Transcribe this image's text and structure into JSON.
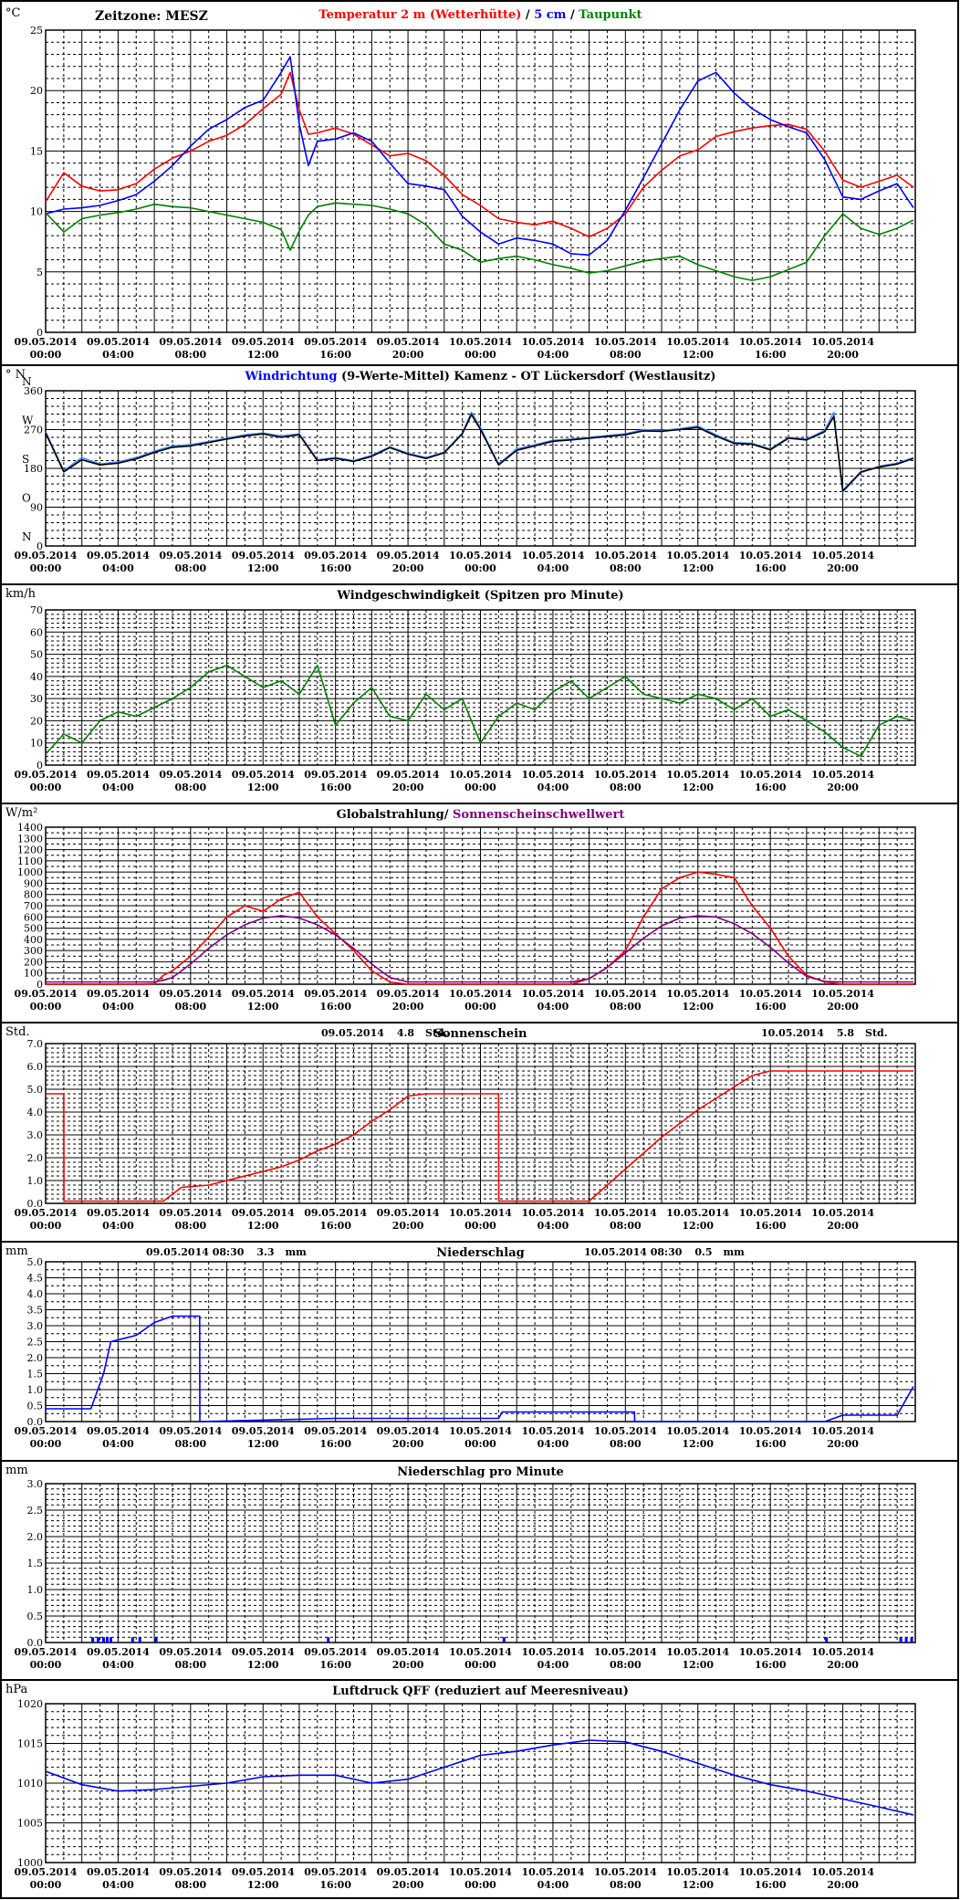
{
  "page": {
    "timezone_label": "Zeitzone: MESZ",
    "x_tick_dates": [
      "09.05.2014",
      "09.05.2014",
      "09.05.2014",
      "09.05.2014",
      "09.05.2014",
      "09.05.2014",
      "10.05.2014",
      "10.05.2014",
      "10.05.2014",
      "10.05.2014",
      "10.05.2014",
      "10.05.2014"
    ],
    "x_tick_times": [
      "00:00",
      "04:00",
      "08:00",
      "12:00",
      "16:00",
      "20:00",
      "00:00",
      "04:00",
      "08:00",
      "12:00",
      "16:00",
      "20:00"
    ]
  },
  "chart_data": [
    {
      "id": "temperature",
      "type": "line",
      "unit": "°C",
      "title_parts": [
        {
          "text": "Temperatur 2 m (Wetterhütte)",
          "color": "#ff0000"
        },
        {
          "text": "  /  ",
          "color": "#000000"
        },
        {
          "text": "5 cm",
          "color": "#0000ff"
        },
        {
          "text": " / ",
          "color": "#000000"
        },
        {
          "text": "Taupunkt",
          "color": "#008000"
        }
      ],
      "ylim": [
        0,
        25
      ],
      "yticks": [
        0,
        5,
        10,
        15,
        20,
        25
      ],
      "x_hours": [
        0,
        1,
        2,
        3,
        4,
        5,
        6,
        7,
        8,
        9,
        10,
        11,
        12,
        13,
        13.5,
        14,
        14.5,
        15,
        16,
        17,
        18,
        19,
        20,
        21,
        22,
        23,
        24,
        25,
        26,
        27,
        28,
        29,
        30,
        31,
        32,
        33,
        34,
        35,
        36,
        37,
        38,
        39,
        40,
        41,
        42,
        43,
        44,
        45,
        46,
        47,
        47.9
      ],
      "series": [
        {
          "name": "Temperatur 2 m (Wetterhütte)",
          "color": "#ff0000",
          "values": [
            10.8,
            13.2,
            12.1,
            11.7,
            11.8,
            12.3,
            13.5,
            14.4,
            15.0,
            15.8,
            16.3,
            17.2,
            18.5,
            19.7,
            21.5,
            18.4,
            16.4,
            16.5,
            16.9,
            16.4,
            15.5,
            14.6,
            14.8,
            14.2,
            13.0,
            11.4,
            10.5,
            9.4,
            9.1,
            8.9,
            9.2,
            8.6,
            7.9,
            8.6,
            9.8,
            12.0,
            13.4,
            14.6,
            15.1,
            16.2,
            16.6,
            16.9,
            17.1,
            17.2,
            16.8,
            15.0,
            12.6,
            12.0,
            12.5,
            13.0,
            12.0
          ]
        },
        {
          "name": "5 cm",
          "color": "#0000ff",
          "values": [
            9.8,
            10.2,
            10.3,
            10.5,
            10.9,
            11.4,
            12.5,
            13.8,
            15.4,
            16.8,
            17.6,
            18.6,
            19.2,
            21.5,
            22.8,
            17.2,
            13.8,
            15.8,
            16.0,
            16.5,
            15.8,
            14.0,
            12.3,
            12.1,
            11.8,
            9.6,
            8.3,
            7.3,
            7.8,
            7.6,
            7.3,
            6.5,
            6.4,
            7.6,
            10.1,
            12.8,
            15.6,
            18.4,
            20.8,
            21.5,
            19.8,
            18.5,
            17.6,
            17.0,
            16.5,
            14.3,
            11.2,
            11.0,
            11.7,
            12.3,
            10.3
          ]
        },
        {
          "name": "Taupunkt",
          "color": "#008000",
          "values": [
            9.9,
            8.3,
            9.4,
            9.7,
            9.9,
            10.2,
            10.6,
            10.4,
            10.3,
            10.0,
            9.7,
            9.4,
            9.1,
            8.5,
            6.8,
            8.4,
            9.7,
            10.4,
            10.7,
            10.6,
            10.5,
            10.2,
            9.8,
            8.9,
            7.3,
            6.8,
            5.8,
            6.1,
            6.3,
            6.0,
            5.6,
            5.3,
            4.9,
            5.1,
            5.5,
            5.9,
            6.1,
            6.3,
            5.6,
            5.1,
            4.6,
            4.3,
            4.6,
            5.2,
            5.8,
            8.0,
            9.8,
            8.6,
            8.1,
            8.6,
            9.3
          ]
        }
      ]
    },
    {
      "id": "wind_direction",
      "type": "line",
      "unit": "° N",
      "title_parts": [
        {
          "text": "Windrichtung ",
          "color": "#0000ff"
        },
        {
          "text": "(9-Werte-Mittel)",
          "color": "#000000"
        },
        {
          "text": "          Kamenz - OT Lückersdorf (Westlausitz)",
          "color": "#000000"
        }
      ],
      "ylim": [
        0,
        360
      ],
      "yticks": [
        0,
        90,
        180,
        270,
        360
      ],
      "ytick_letters": [
        "N",
        "O",
        "S",
        "W",
        "N"
      ],
      "x_hours": [
        0,
        1,
        2,
        3,
        4,
        5,
        6,
        7,
        8,
        9,
        10,
        11,
        12,
        13,
        14,
        15,
        16,
        17,
        18,
        19,
        20,
        21,
        22,
        23,
        23.5,
        24,
        25,
        26,
        27,
        28,
        29,
        30,
        31,
        32,
        33,
        34,
        35,
        36,
        37,
        38,
        39,
        40,
        41,
        42,
        43,
        43.5,
        44,
        45,
        46,
        47,
        47.9
      ],
      "series": [
        {
          "name": "Windrichtung",
          "color": "#4a86ff",
          "values": [
            265,
            175,
            205,
            190,
            195,
            205,
            220,
            232,
            235,
            242,
            250,
            258,
            262,
            255,
            260,
            200,
            205,
            198,
            210,
            230,
            215,
            205,
            218,
            262,
            310,
            275,
            190,
            225,
            235,
            245,
            248,
            252,
            256,
            260,
            270,
            268,
            272,
            278,
            258,
            240,
            238,
            225,
            252,
            248,
            268,
            310,
            125,
            170,
            185,
            192,
            205
          ]
        },
        {
          "name": "9-Werte-Mittel",
          "color": "#000000",
          "values": [
            262,
            172,
            200,
            188,
            192,
            202,
            217,
            229,
            232,
            240,
            248,
            255,
            260,
            252,
            258,
            198,
            203,
            196,
            208,
            228,
            213,
            203,
            216,
            260,
            305,
            270,
            188,
            222,
            232,
            243,
            246,
            250,
            254,
            258,
            267,
            266,
            270,
            275,
            255,
            238,
            236,
            223,
            250,
            246,
            265,
            300,
            128,
            172,
            183,
            190,
            203
          ]
        }
      ]
    },
    {
      "id": "wind_speed",
      "type": "line",
      "unit": "km/h",
      "title": "Windgeschwindigkeit (Spitzen pro Minute)",
      "ylim": [
        0,
        70
      ],
      "yticks": [
        0,
        10,
        20,
        30,
        40,
        50,
        60,
        70
      ],
      "x_hours": [
        0,
        1,
        2,
        3,
        4,
        5,
        6,
        7,
        8,
        9,
        10,
        11,
        12,
        13,
        14,
        15,
        16,
        17,
        18,
        19,
        20,
        21,
        22,
        23,
        24,
        25,
        26,
        27,
        28,
        29,
        30,
        31,
        32,
        33,
        34,
        35,
        36,
        37,
        38,
        39,
        40,
        41,
        42,
        43,
        44,
        45,
        46,
        47,
        47.9
      ],
      "series": [
        {
          "name": "Windgeschwindigkeit",
          "color": "#008000",
          "values": [
            5,
            14,
            10,
            20,
            24,
            22,
            26,
            30,
            35,
            42,
            45,
            40,
            35,
            38,
            32,
            45,
            18,
            28,
            35,
            22,
            20,
            32,
            25,
            30,
            10,
            22,
            28,
            25,
            33,
            38,
            30,
            35,
            40,
            32,
            30,
            28,
            32,
            30,
            25,
            30,
            22,
            25,
            20,
            15,
            8,
            4,
            18,
            22,
            20
          ]
        }
      ]
    },
    {
      "id": "global_radiation",
      "type": "line",
      "unit": "W/m²",
      "title_parts": [
        {
          "text": "Globalstrahlung/ ",
          "color": "#000000"
        },
        {
          "text": "Sonnenscheinschwellwert",
          "color": "#800080"
        }
      ],
      "ylim": [
        0,
        1400
      ],
      "yticks": [
        0,
        100,
        200,
        300,
        400,
        500,
        600,
        700,
        800,
        900,
        1000,
        1100,
        1200,
        1300,
        1400
      ],
      "x_hours": [
        0,
        5,
        6,
        6.5,
        7,
        8,
        9,
        10,
        11,
        12,
        13,
        14,
        15,
        16,
        17,
        18,
        19,
        20,
        29,
        30,
        31,
        32,
        33,
        34,
        35,
        36,
        37,
        38,
        39,
        40,
        41,
        42,
        43,
        44,
        47.9
      ],
      "series": [
        {
          "name": "Globalstrahlung",
          "color": "#ff0000",
          "values": [
            0,
            0,
            5,
            80,
            120,
            250,
            420,
            600,
            700,
            650,
            760,
            820,
            600,
            450,
            300,
            120,
            20,
            0,
            0,
            50,
            150,
            300,
            600,
            850,
            950,
            1000,
            980,
            950,
            700,
            500,
            250,
            80,
            20,
            0,
            0
          ]
        },
        {
          "name": "Sonnenscheinschwellwert",
          "color": "#800080",
          "values": [
            20,
            20,
            20,
            35,
            60,
            180,
            320,
            440,
            530,
            590,
            610,
            590,
            530,
            440,
            320,
            180,
            60,
            20,
            20,
            50,
            150,
            280,
            410,
            520,
            590,
            610,
            600,
            540,
            450,
            330,
            190,
            70,
            25,
            20,
            20
          ]
        }
      ]
    },
    {
      "id": "sunshine",
      "type": "line",
      "unit": "Std.",
      "title": "Sonnenschein",
      "annotations": [
        {
          "date": "09.05.2014",
          "value": "4.8",
          "unit": "Std."
        },
        {
          "date": "10.05.2014",
          "value": "5.8",
          "unit": "Std."
        }
      ],
      "ylim": [
        0,
        7
      ],
      "yticks": [
        0.0,
        1.0,
        2.0,
        3.0,
        4.0,
        5.0,
        6.0,
        7.0
      ],
      "x_hours": [
        0,
        1.0,
        1.01,
        6.5,
        7.5,
        9,
        10,
        11,
        12,
        13,
        14,
        15,
        16,
        17,
        18,
        19,
        20,
        21,
        22,
        25,
        25.01,
        30,
        31,
        32,
        33,
        34,
        35,
        36,
        37,
        38,
        39,
        40,
        47.9
      ],
      "series": [
        {
          "name": "Sonnenschein",
          "color": "#ff0000",
          "values": [
            4.8,
            4.8,
            0.1,
            0.1,
            0.7,
            0.8,
            1.0,
            1.2,
            1.4,
            1.6,
            1.9,
            2.3,
            2.6,
            3.0,
            3.6,
            4.1,
            4.7,
            4.8,
            4.8,
            4.8,
            0.1,
            0.1,
            0.8,
            1.5,
            2.2,
            2.9,
            3.5,
            4.1,
            4.6,
            5.1,
            5.6,
            5.8,
            5.8
          ]
        }
      ]
    },
    {
      "id": "precipitation",
      "type": "line",
      "unit": "mm",
      "title": "Niederschlag",
      "annotations": [
        {
          "date": "09.05.2014 08:30",
          "value": "3.3",
          "unit": "mm"
        },
        {
          "date": "10.05.2014 08:30",
          "value": "0.5",
          "unit": "mm"
        }
      ],
      "ylim": [
        0,
        5
      ],
      "yticks": [
        0.0,
        0.5,
        1.0,
        1.5,
        2.0,
        2.5,
        3.0,
        3.5,
        4.0,
        4.5,
        5.0
      ],
      "x_hours": [
        0,
        2.5,
        3.2,
        3.6,
        5.0,
        6.0,
        7.0,
        8.5,
        8.51,
        16,
        25,
        25.2,
        32.5,
        32.51,
        43,
        44,
        47,
        47.9
      ],
      "series": [
        {
          "name": "Niederschlag",
          "color": "#0000ff",
          "values": [
            0.4,
            0.4,
            1.5,
            2.5,
            2.7,
            3.1,
            3.3,
            3.3,
            0.0,
            0.1,
            0.1,
            0.3,
            0.3,
            0.0,
            0.0,
            0.2,
            0.2,
            1.1
          ]
        }
      ]
    },
    {
      "id": "precipitation_per_minute",
      "type": "bar",
      "unit": "mm",
      "title": "Niederschlag pro Minute",
      "ylim": [
        0,
        3
      ],
      "yticks": [
        0.0,
        0.5,
        1.0,
        1.5,
        2.0,
        2.5,
        3.0
      ],
      "x_hours": [
        2.6,
        2.9,
        3.2,
        3.4,
        3.6,
        4.8,
        5.2,
        6.1,
        15.6,
        25.3,
        43.1,
        47.2,
        47.5,
        47.8
      ],
      "values": [
        0.1,
        0.1,
        0.1,
        0.1,
        0.1,
        0.1,
        0.1,
        0.1,
        0.1,
        0.1,
        0.1,
        0.1,
        0.1,
        0.1
      ],
      "color": "#0000ff"
    },
    {
      "id": "pressure",
      "type": "line",
      "unit": "hPa",
      "title": "Luftdruck QFF (reduziert auf Meeresniveau)",
      "ylim": [
        1000,
        1020
      ],
      "yticks": [
        1000,
        1005,
        1010,
        1015,
        1020
      ],
      "x_hours": [
        0,
        2,
        4,
        6,
        8,
        10,
        12,
        14,
        16,
        18,
        20,
        22,
        24,
        26,
        28,
        30,
        32,
        34,
        36,
        38,
        40,
        42,
        44,
        46,
        47.9
      ],
      "series": [
        {
          "name": "Luftdruck QFF",
          "color": "#0000ff",
          "values": [
            1011.5,
            1009.8,
            1009.0,
            1009.2,
            1009.6,
            1010.0,
            1010.8,
            1011.0,
            1011.0,
            1010.0,
            1010.5,
            1012.0,
            1013.5,
            1014.0,
            1014.8,
            1015.4,
            1015.2,
            1014.0,
            1012.5,
            1011.0,
            1009.8,
            1009.0,
            1008.0,
            1007.0,
            1006.0
          ]
        }
      ]
    }
  ]
}
